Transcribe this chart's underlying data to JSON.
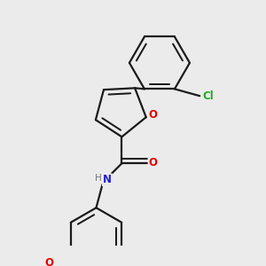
{
  "background_color": "#ebebeb",
  "bond_color": "#1a1a1a",
  "colors": {
    "O": "#e00000",
    "N": "#2020cc",
    "Cl": "#22aa22",
    "H_gray": "#777777"
  },
  "lw": 1.6,
  "dbo": 0.018,
  "figsize": [
    3.0,
    3.0
  ],
  "dpi": 100
}
